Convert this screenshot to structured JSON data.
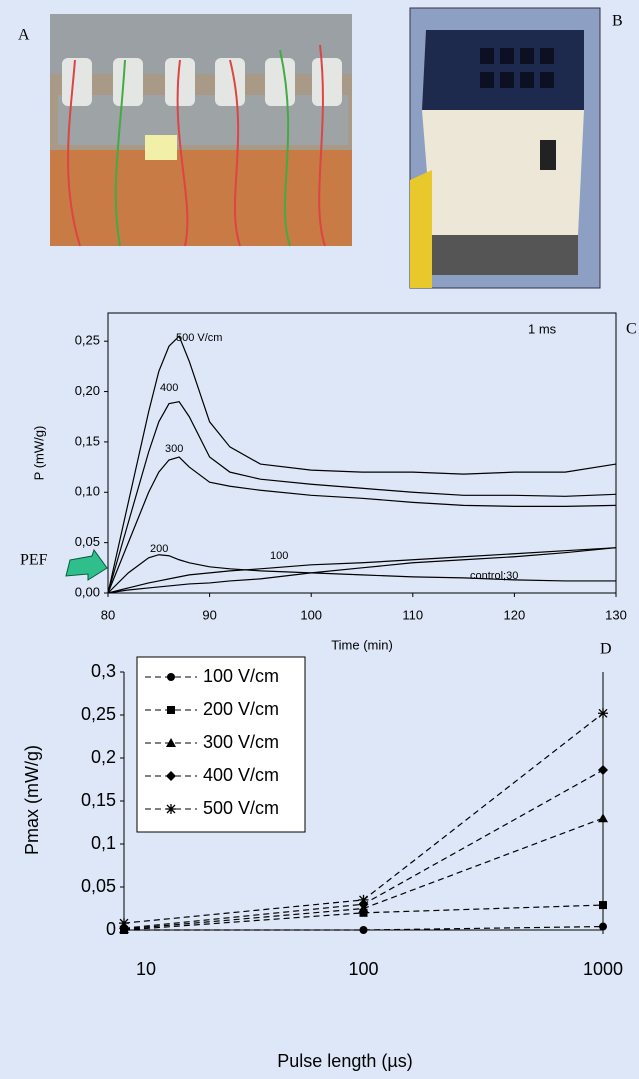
{
  "photos": [
    {
      "label": "A"
    },
    {
      "label": "B"
    }
  ],
  "chart_data": [
    {
      "type": "line",
      "panel_label": "C",
      "annotations": [
        "1 ms",
        "PEF"
      ],
      "x_label": "Time (min)",
      "y_label": "P (mW/g)",
      "x": [
        80,
        82,
        84,
        85,
        86,
        87,
        88,
        90,
        92,
        95,
        100,
        105,
        110,
        115,
        120,
        125,
        130
      ],
      "series": [
        {
          "name": "500 V/cm",
          "color": "#000000",
          "values": [
            0,
            0.09,
            0.18,
            0.22,
            0.245,
            0.255,
            0.23,
            0.17,
            0.145,
            0.128,
            0.122,
            0.12,
            0.12,
            0.118,
            0.12,
            0.12,
            0.128
          ]
        },
        {
          "name": "400",
          "color": "#000000",
          "values": [
            0,
            0.07,
            0.14,
            0.17,
            0.188,
            0.19,
            0.175,
            0.135,
            0.12,
            0.113,
            0.108,
            0.104,
            0.1,
            0.097,
            0.097,
            0.096,
            0.098
          ]
        },
        {
          "name": "300",
          "color": "#000000",
          "values": [
            0,
            0.05,
            0.1,
            0.12,
            0.132,
            0.135,
            0.125,
            0.11,
            0.106,
            0.102,
            0.097,
            0.094,
            0.09,
            0.087,
            0.086,
            0.086,
            0.087
          ]
        },
        {
          "name": "200",
          "color": "#000000",
          "values": [
            0,
            0.02,
            0.035,
            0.038,
            0.037,
            0.033,
            0.03,
            0.026,
            0.024,
            0.022,
            0.02,
            0.018,
            0.016,
            0.015,
            0.013,
            0.012,
            0.012
          ]
        },
        {
          "name": "100",
          "color": "#000000",
          "values": [
            0,
            0.005,
            0.01,
            0.012,
            0.014,
            0.016,
            0.018,
            0.02,
            0.022,
            0.024,
            0.028,
            0.03,
            0.033,
            0.036,
            0.039,
            0.042,
            0.045
          ]
        },
        {
          "name": "control;30",
          "color": "#000000",
          "values": [
            0,
            0.003,
            0.005,
            0.006,
            0.007,
            0.008,
            0.009,
            0.01,
            0.012,
            0.014,
            0.02,
            0.025,
            0.03,
            0.033,
            0.036,
            0.04,
            0.045
          ]
        }
      ],
      "xlim": [
        80,
        130
      ],
      "xticks": [
        80,
        90,
        100,
        110,
        120,
        130
      ],
      "ylim": [
        0,
        0.278
      ],
      "yticks": [
        {
          "value": 0,
          "label": "0,00"
        },
        {
          "value": 0.05,
          "label": "0,05"
        },
        {
          "value": 0.1,
          "label": "0,10"
        },
        {
          "value": 0.15,
          "label": "0,15"
        },
        {
          "value": 0.2,
          "label": "0,20"
        },
        {
          "value": 0.25,
          "label": "0,25"
        }
      ],
      "grid": false,
      "legend": false
    },
    {
      "type": "line",
      "panel_label": "D",
      "x_label": "Pulse length (µs)",
      "y_label": "Pmax (mW/g)",
      "x": [
        10,
        100,
        1000
      ],
      "x_scale": "log",
      "series": [
        {
          "name": "100 V/cm",
          "color": "#000000",
          "marker": "circle",
          "values": [
            0,
            0,
            0.004
          ]
        },
        {
          "name": "200 V/cm",
          "color": "#000000",
          "marker": "square",
          "values": [
            0,
            0.02,
            0.029
          ]
        },
        {
          "name": "300 V/cm",
          "color": "#000000",
          "marker": "triangle",
          "values": [
            0.001,
            0.025,
            0.13
          ]
        },
        {
          "name": "400 V/cm",
          "color": "#000000",
          "marker": "diamond",
          "values": [
            0.002,
            0.03,
            0.186
          ]
        },
        {
          "name": "500 V/cm",
          "color": "#000000",
          "marker": "star",
          "values": [
            0.008,
            0.035,
            0.252
          ]
        }
      ],
      "xlim": [
        10,
        1000
      ],
      "xticks": [
        10,
        100,
        1000
      ],
      "ylim": [
        0,
        0.3
      ],
      "yticks": [
        0,
        {
          "value": 0.05,
          "label": "0,05"
        },
        {
          "value": 0.1,
          "label": "0,1"
        },
        {
          "value": 0.15,
          "label": "0,15"
        },
        {
          "value": 0.2,
          "label": "0,2"
        },
        {
          "value": 0.25,
          "label": "0,25"
        },
        {
          "value": 0.3,
          "label": "0,3"
        }
      ],
      "grid": false,
      "legend": "upper left"
    }
  ]
}
